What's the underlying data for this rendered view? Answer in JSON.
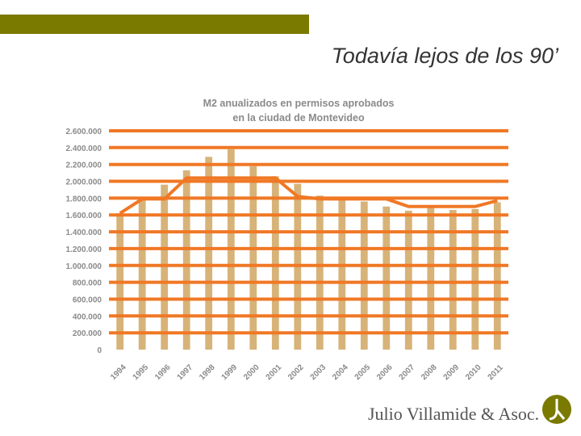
{
  "slide": {
    "title": "Todavía lejos de los 90’",
    "brand": "Julio Villamide & Asoc.",
    "colors": {
      "top_bar": "#7a7a00",
      "bar": "#d7b379",
      "grid": "#f07825",
      "title_text": "#333333",
      "chart_title_text": "#8a8a8a",
      "logo": "#7a7a00"
    },
    "logo_icon": "jv-monogram-icon"
  },
  "chart_data": {
    "type": "bar",
    "title_lines": [
      "M2 anualizados en permisos aprobados",
      "en la ciudad de Montevideo"
    ],
    "categories": [
      "1994",
      "1995",
      "1996",
      "1997",
      "1998",
      "1999",
      "2000",
      "2001",
      "2002",
      "2003",
      "2004",
      "2005",
      "2006",
      "2007",
      "2008",
      "2009",
      "2010",
      "2011"
    ],
    "values": [
      1620000,
      1790000,
      1960000,
      2130000,
      2290000,
      2380000,
      2180000,
      2060000,
      1970000,
      1830000,
      1790000,
      1760000,
      1700000,
      1650000,
      1700000,
      1660000,
      1670000,
      1750000
    ],
    "trend": [
      1620000,
      1790000,
      1790000,
      2040000,
      2040000,
      2040000,
      2040000,
      2040000,
      1820000,
      1790000,
      1790000,
      1790000,
      1790000,
      1700000,
      1700000,
      1700000,
      1700000,
      1770000
    ],
    "y_ticks": [
      "0",
      "200.000",
      "400.000",
      "600.000",
      "800.000",
      "1.000.000",
      "1.200.000",
      "1.400.000",
      "1.600.000",
      "1.800.000",
      "2.000.000",
      "2.200.000",
      "2.400.000",
      "2.600.000"
    ],
    "ylim": [
      0,
      2600000
    ],
    "xlabel": "",
    "ylabel": "",
    "grid": true
  }
}
